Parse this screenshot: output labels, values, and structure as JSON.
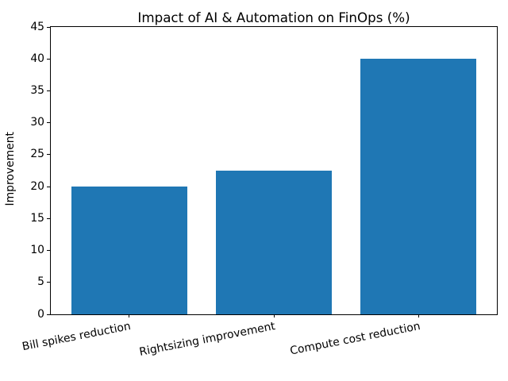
{
  "chart_data": {
    "type": "bar",
    "title": "Impact of AI & Automation on FinOps (%)",
    "xlabel": "",
    "ylabel": "Improvement",
    "categories": [
      "Bill spikes reduction",
      "Rightsizing improvement",
      "Compute cost reduction"
    ],
    "values": [
      20,
      22.5,
      40
    ],
    "ylim": [
      0,
      45
    ],
    "yticks": [
      0,
      5,
      10,
      15,
      20,
      25,
      30,
      35,
      40,
      45
    ],
    "bar_color": "#1f77b4",
    "axis_color": "#000000",
    "text_color": "#000000",
    "background_color": "#ffffff",
    "grid": false,
    "legend": null,
    "bar_width_fraction": 0.8,
    "x_tick_label_rotation_deg": 11
  }
}
